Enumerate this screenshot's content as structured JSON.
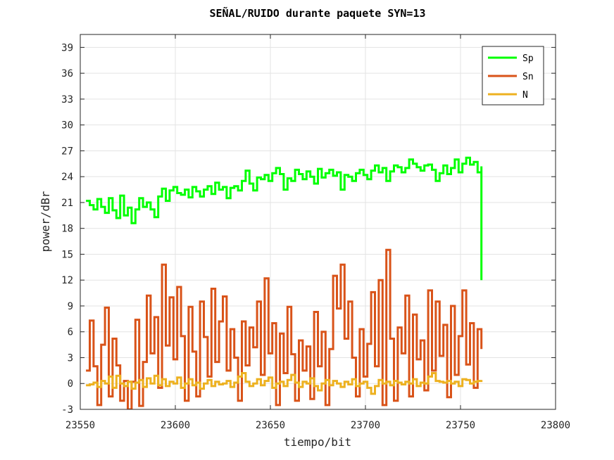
{
  "chart_data": {
    "type": "line",
    "title": "SEÑAL/RUIDO durante paquete SYN=13",
    "xlabel": "tiempo/bit",
    "ylabel": "power/dBr",
    "xlim": [
      23550,
      23800
    ],
    "ylim": [
      -3,
      40.5
    ],
    "xticks": [
      23550,
      23600,
      23650,
      23700,
      23750,
      23800
    ],
    "yticks": [
      -3,
      0,
      3,
      6,
      9,
      12,
      15,
      18,
      21,
      24,
      27,
      30,
      33,
      36,
      39
    ],
    "grid": true,
    "legend_position": "top-right",
    "series": [
      {
        "name": "Sp",
        "color": "#00ff00",
        "x": [
          23553,
          23555,
          23557,
          23559,
          23561,
          23563,
          23565,
          23567,
          23569,
          23571,
          23573,
          23575,
          23577,
          23579,
          23581,
          23583,
          23585,
          23587,
          23589,
          23591,
          23593,
          23595,
          23597,
          23599,
          23601,
          23603,
          23605,
          23607,
          23609,
          23611,
          23613,
          23615,
          23617,
          23619,
          23621,
          23623,
          23625,
          23627,
          23629,
          23631,
          23633,
          23635,
          23637,
          23639,
          23641,
          23643,
          23645,
          23647,
          23649,
          23651,
          23653,
          23655,
          23657,
          23659,
          23661,
          23663,
          23665,
          23667,
          23669,
          23671,
          23673,
          23675,
          23677,
          23679,
          23681,
          23683,
          23685,
          23687,
          23689,
          23691,
          23693,
          23695,
          23697,
          23699,
          23701,
          23703,
          23705,
          23707,
          23709,
          23711,
          23713,
          23715,
          23717,
          23719,
          23721,
          23723,
          23725,
          23727,
          23729,
          23731,
          23733,
          23735,
          23737,
          23739,
          23741,
          23743,
          23745,
          23747,
          23749,
          23751,
          23753,
          23755,
          23757,
          23759,
          23761,
          23761
        ],
        "y": [
          21.2,
          20.7,
          20.2,
          21.4,
          20.5,
          19.8,
          21.5,
          20.1,
          19.2,
          21.8,
          19.5,
          20.4,
          18.6,
          20.2,
          21.5,
          20.5,
          21.0,
          20.2,
          19.3,
          21.7,
          22.6,
          21.2,
          22.4,
          22.8,
          22.1,
          21.9,
          22.5,
          21.6,
          22.8,
          22.3,
          21.7,
          22.5,
          22.9,
          22.0,
          23.3,
          22.5,
          22.8,
          21.5,
          22.7,
          22.9,
          22.4,
          23.5,
          24.7,
          23.2,
          22.4,
          23.9,
          23.7,
          24.2,
          23.5,
          24.4,
          25.0,
          24.3,
          22.5,
          23.8,
          23.5,
          24.8,
          24.3,
          23.7,
          24.6,
          24.0,
          23.2,
          24.9,
          23.9,
          24.4,
          24.8,
          24.1,
          24.5,
          22.5,
          24.2,
          24.0,
          23.5,
          24.4,
          24.8,
          24.2,
          23.7,
          24.7,
          25.3,
          24.5,
          25.0,
          23.5,
          24.6,
          25.3,
          25.1,
          24.5,
          25.0,
          26.0,
          25.5,
          25.1,
          24.7,
          25.3,
          25.4,
          24.8,
          23.5,
          24.4,
          25.3,
          24.3,
          25.0,
          26.0,
          24.5,
          25.5,
          26.2,
          25.4,
          25.7,
          24.5,
          25.2,
          12.0
        ]
      },
      {
        "name": "Sn",
        "color": "#d95319",
        "x": [
          23553,
          23555,
          23557,
          23559,
          23561,
          23563,
          23565,
          23567,
          23569,
          23571,
          23573,
          23575,
          23577,
          23579,
          23581,
          23583,
          23585,
          23587,
          23589,
          23591,
          23593,
          23595,
          23597,
          23599,
          23601,
          23603,
          23605,
          23607,
          23609,
          23611,
          23613,
          23615,
          23617,
          23619,
          23621,
          23623,
          23625,
          23627,
          23629,
          23631,
          23633,
          23635,
          23637,
          23639,
          23641,
          23643,
          23645,
          23647,
          23649,
          23651,
          23653,
          23655,
          23657,
          23659,
          23661,
          23663,
          23665,
          23667,
          23669,
          23671,
          23673,
          23675,
          23677,
          23679,
          23681,
          23683,
          23685,
          23687,
          23689,
          23691,
          23693,
          23695,
          23697,
          23699,
          23701,
          23703,
          23705,
          23707,
          23709,
          23711,
          23713,
          23715,
          23717,
          23719,
          23721,
          23723,
          23725,
          23727,
          23729,
          23731,
          23733,
          23735,
          23737,
          23739,
          23741,
          23743,
          23745,
          23747,
          23749,
          23751,
          23753,
          23755,
          23757,
          23759,
          23761
        ],
        "y": [
          1.5,
          7.3,
          2.0,
          -2.5,
          4.5,
          8.8,
          -1.5,
          5.2,
          2.1,
          -2.0,
          0.3,
          -3.0,
          0.2,
          7.4,
          -2.6,
          2.5,
          10.2,
          3.5,
          7.7,
          -0.5,
          13.8,
          4.4,
          10.0,
          2.8,
          11.2,
          5.5,
          -2.0,
          8.9,
          3.7,
          -1.5,
          9.5,
          5.4,
          0.8,
          11.0,
          2.5,
          7.2,
          10.1,
          1.5,
          6.3,
          3.0,
          -2.0,
          7.2,
          2.1,
          6.5,
          4.2,
          9.5,
          1.0,
          12.2,
          3.5,
          7.0,
          -2.5,
          5.8,
          1.2,
          8.9,
          3.4,
          -2.0,
          5.0,
          1.5,
          4.3,
          -1.8,
          8.3,
          2.0,
          6.0,
          -2.5,
          4.0,
          12.5,
          8.7,
          13.8,
          5.2,
          9.5,
          3.0,
          -1.5,
          6.3,
          0.8,
          4.6,
          10.6,
          2.0,
          12.0,
          -2.5,
          15.5,
          5.2,
          -2.0,
          6.5,
          3.5,
          10.2,
          -1.5,
          8.0,
          2.8,
          5.0,
          -0.8,
          10.8,
          1.5,
          9.5,
          3.2,
          6.8,
          -1.6,
          9.0,
          1.0,
          5.5,
          10.8,
          2.2,
          7.0,
          -0.5,
          6.3,
          4.0
        ]
      },
      {
        "name": "N",
        "color": "#edb120",
        "x": [
          23553,
          23555,
          23557,
          23559,
          23561,
          23563,
          23565,
          23567,
          23569,
          23571,
          23573,
          23575,
          23577,
          23579,
          23581,
          23583,
          23585,
          23587,
          23589,
          23591,
          23593,
          23595,
          23597,
          23599,
          23601,
          23603,
          23605,
          23607,
          23609,
          23611,
          23613,
          23615,
          23617,
          23619,
          23621,
          23623,
          23625,
          23627,
          23629,
          23631,
          23633,
          23635,
          23637,
          23639,
          23641,
          23643,
          23645,
          23647,
          23649,
          23651,
          23653,
          23655,
          23657,
          23659,
          23661,
          23663,
          23665,
          23667,
          23669,
          23671,
          23673,
          23675,
          23677,
          23679,
          23681,
          23683,
          23685,
          23687,
          23689,
          23691,
          23693,
          23695,
          23697,
          23699,
          23701,
          23703,
          23705,
          23707,
          23709,
          23711,
          23713,
          23715,
          23717,
          23719,
          23721,
          23723,
          23725,
          23727,
          23729,
          23731,
          23733,
          23735,
          23737,
          23739,
          23741,
          23743,
          23745,
          23747,
          23749,
          23751,
          23753,
          23755,
          23757,
          23759,
          23761
        ],
        "y": [
          -0.2,
          -0.1,
          0.1,
          -0.4,
          0.3,
          0.0,
          0.8,
          -0.5,
          0.9,
          0.0,
          -0.3,
          0.2,
          -0.6,
          0.1,
          0.4,
          -0.4,
          0.6,
          0.0,
          0.9,
          -0.2,
          0.5,
          -0.3,
          0.2,
          0.0,
          0.7,
          -0.5,
          0.0,
          0.5,
          -0.2,
          0.1,
          -0.6,
          0.0,
          0.4,
          -0.3,
          0.2,
          -0.1,
          0.0,
          0.3,
          -0.4,
          0.1,
          0.8,
          1.2,
          0.2,
          -0.3,
          0.0,
          0.5,
          -0.2,
          0.3,
          0.7,
          -0.5,
          0.0,
          0.2,
          -0.3,
          0.4,
          1.0,
          0.1,
          -0.4,
          0.2,
          0.0,
          0.6,
          -0.3,
          -0.8,
          0.0,
          0.4,
          -0.2,
          0.3,
          0.0,
          -0.4,
          0.2,
          -0.1,
          0.5,
          -0.3,
          0.0,
          0.2,
          -0.5,
          -1.2,
          -0.3,
          0.4,
          0.0,
          0.2,
          -0.2,
          0.3,
          0.1,
          -0.1,
          0.2,
          0.0,
          0.5,
          -0.3,
          0.1,
          0.0,
          0.8,
          1.2,
          0.3,
          0.2,
          0.1,
          0.3,
          0.0,
          0.2,
          -0.3,
          0.5,
          0.4,
          0.0,
          0.2,
          0.3,
          0.4
        ]
      }
    ]
  }
}
